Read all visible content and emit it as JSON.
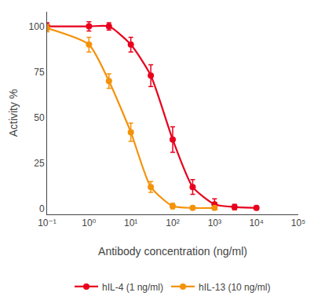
{
  "chart_data": {
    "type": "line",
    "title": "",
    "xlabel": "Antibody concentration (ng/ml)",
    "ylabel": "Activity %",
    "log": "x",
    "grid": false,
    "legend": "bottom",
    "marker": "circle",
    "xlim": [
      0.1,
      100000
    ],
    "xticks": [
      {
        "value": 0.1,
        "label": "10⁻¹"
      },
      {
        "value": 1,
        "label": "10⁰"
      },
      {
        "value": 10,
        "label": "10¹"
      },
      {
        "value": 100,
        "label": "10²"
      },
      {
        "value": 1000,
        "label": "10³"
      },
      {
        "value": 10000,
        "label": "10⁴"
      },
      {
        "value": 100000,
        "label": "10⁵"
      }
    ],
    "ylim": [
      -3,
      108
    ],
    "yticks": [
      0,
      25,
      50,
      75,
      100
    ],
    "series": [
      {
        "name": "hIL-4 (1 ng/ml)",
        "color": "#e8001c",
        "x": [
          0.1,
          1.0,
          3.0,
          10.0,
          30.0,
          100.0,
          300.0,
          1000.0,
          3000.0,
          10000.0
        ],
        "values": [
          100.0,
          100.0,
          100.0,
          90.0,
          73.0,
          38.0,
          12.0,
          2.5,
          1.0,
          0.5
        ],
        "yerr": [
          2.0,
          2.5,
          2.0,
          4.0,
          6.0,
          7.0,
          4.0,
          3.0,
          1.5,
          1.0
        ]
      },
      {
        "name": "hIL-13 (10 ng/ml)",
        "color": "#f5920a",
        "x": [
          0.1,
          1.0,
          3.0,
          10.0,
          30.0,
          100.0,
          300.0,
          1000.0
        ],
        "values": [
          99.0,
          90.0,
          70.0,
          42.0,
          12.0,
          1.5,
          0.5,
          0.5
        ],
        "yerr": [
          2.0,
          4.0,
          4.0,
          5.0,
          3.0,
          1.5,
          0.8,
          0.5
        ]
      }
    ]
  }
}
